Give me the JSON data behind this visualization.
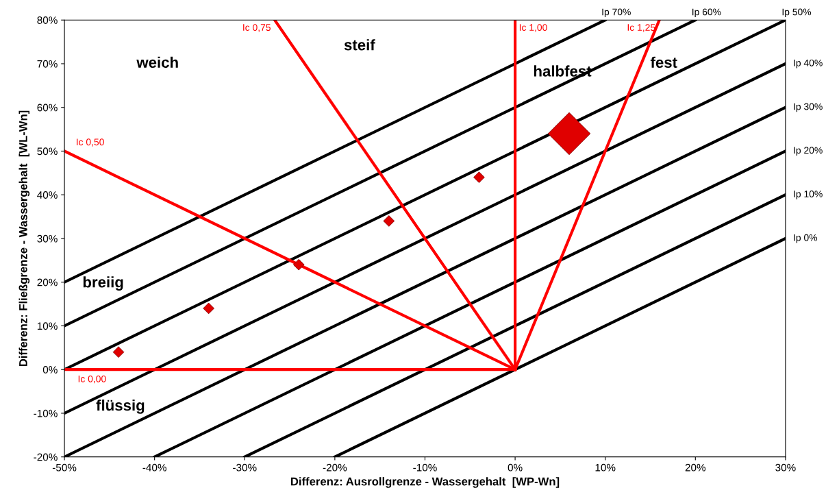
{
  "chart_data": {
    "type": "line",
    "xlabel": "Differenz: Ausrollgrenze - Wassergehalt  [WP-Wn]",
    "ylabel": "Differenz: Fließgrenze - Wassergehalt  [WL-Wn]",
    "xlim": [
      -50,
      30
    ],
    "ylim": [
      -20,
      80
    ],
    "xticks": [
      {
        "value": -50,
        "label": "-50%"
      },
      {
        "value": -40,
        "label": "-40%"
      },
      {
        "value": -30,
        "label": "-30%"
      },
      {
        "value": -20,
        "label": "-20%"
      },
      {
        "value": -10,
        "label": "-10%"
      },
      {
        "value": 0,
        "label": "0%"
      },
      {
        "value": 10,
        "label": "10%"
      },
      {
        "value": 20,
        "label": "20%"
      },
      {
        "value": 30,
        "label": "30%"
      }
    ],
    "yticks": [
      {
        "value": -20,
        "label": "-20%"
      },
      {
        "value": -10,
        "label": "-10%"
      },
      {
        "value": 0,
        "label": "0%"
      },
      {
        "value": 10,
        "label": "10%"
      },
      {
        "value": 20,
        "label": "20%"
      },
      {
        "value": 30,
        "label": "30%"
      },
      {
        "value": 40,
        "label": "40%"
      },
      {
        "value": 50,
        "label": "50%"
      },
      {
        "value": 60,
        "label": "60%"
      },
      {
        "value": 70,
        "label": "70%"
      },
      {
        "value": 80,
        "label": "80%"
      }
    ],
    "grid": false,
    "legend": false,
    "marker": "none",
    "line_style": "solid",
    "series": [
      {
        "name": "Ip 0%",
        "color": "#000000",
        "x": [
          -20,
          30
        ],
        "values": [
          -20,
          30
        ]
      },
      {
        "name": "Ip 10%",
        "color": "#000000",
        "x": [
          -30,
          30
        ],
        "values": [
          -20,
          40
        ]
      },
      {
        "name": "Ip 20%",
        "color": "#000000",
        "x": [
          -40,
          30
        ],
        "values": [
          -20,
          50
        ]
      },
      {
        "name": "Ip 30%",
        "color": "#000000",
        "x": [
          -50,
          30
        ],
        "values": [
          -20,
          60
        ]
      },
      {
        "name": "Ip 40%",
        "color": "#000000",
        "x": [
          -50,
          30
        ],
        "values": [
          -10,
          70
        ]
      },
      {
        "name": "Ip 50%",
        "color": "#000000",
        "x": [
          -50,
          30
        ],
        "values": [
          0,
          80
        ]
      },
      {
        "name": "Ip 60%",
        "color": "#000000",
        "x": [
          -50,
          20
        ],
        "values": [
          10,
          80
        ]
      },
      {
        "name": "Ip 70%",
        "color": "#000000",
        "x": [
          -50,
          10
        ],
        "values": [
          20,
          80
        ]
      },
      {
        "name": "Ic 0,00",
        "color": "#ff0000",
        "x": [
          0,
          -50
        ],
        "values": [
          0,
          0
        ]
      },
      {
        "name": "Ic 0,50",
        "color": "#ff0000",
        "x": [
          0,
          -50
        ],
        "values": [
          0,
          50
        ]
      },
      {
        "name": "Ic 0,75",
        "color": "#ff0000",
        "x": [
          0,
          -26.67
        ],
        "values": [
          0,
          80
        ]
      },
      {
        "name": "Ic 1,00",
        "color": "#ff0000",
        "x": [
          0,
          0
        ],
        "values": [
          0,
          80
        ]
      },
      {
        "name": "Ic 1,25",
        "color": "#ff0000",
        "x": [
          0,
          16
        ],
        "values": [
          0,
          80
        ]
      },
      {
        "type": "scatter",
        "marker": "diamond",
        "color": "#e00000",
        "x": [
          -44,
          -34,
          -24,
          -14,
          -4
        ],
        "values": [
          4,
          14,
          24,
          34,
          44
        ]
      },
      {
        "type": "scatter",
        "marker": "diamond",
        "color": "#e00000",
        "x": [
          6
        ],
        "values": [
          54
        ]
      }
    ],
    "annotations": [
      "weich",
      "steif",
      "halbfest",
      "fest",
      "breiig",
      "flüssig"
    ]
  }
}
